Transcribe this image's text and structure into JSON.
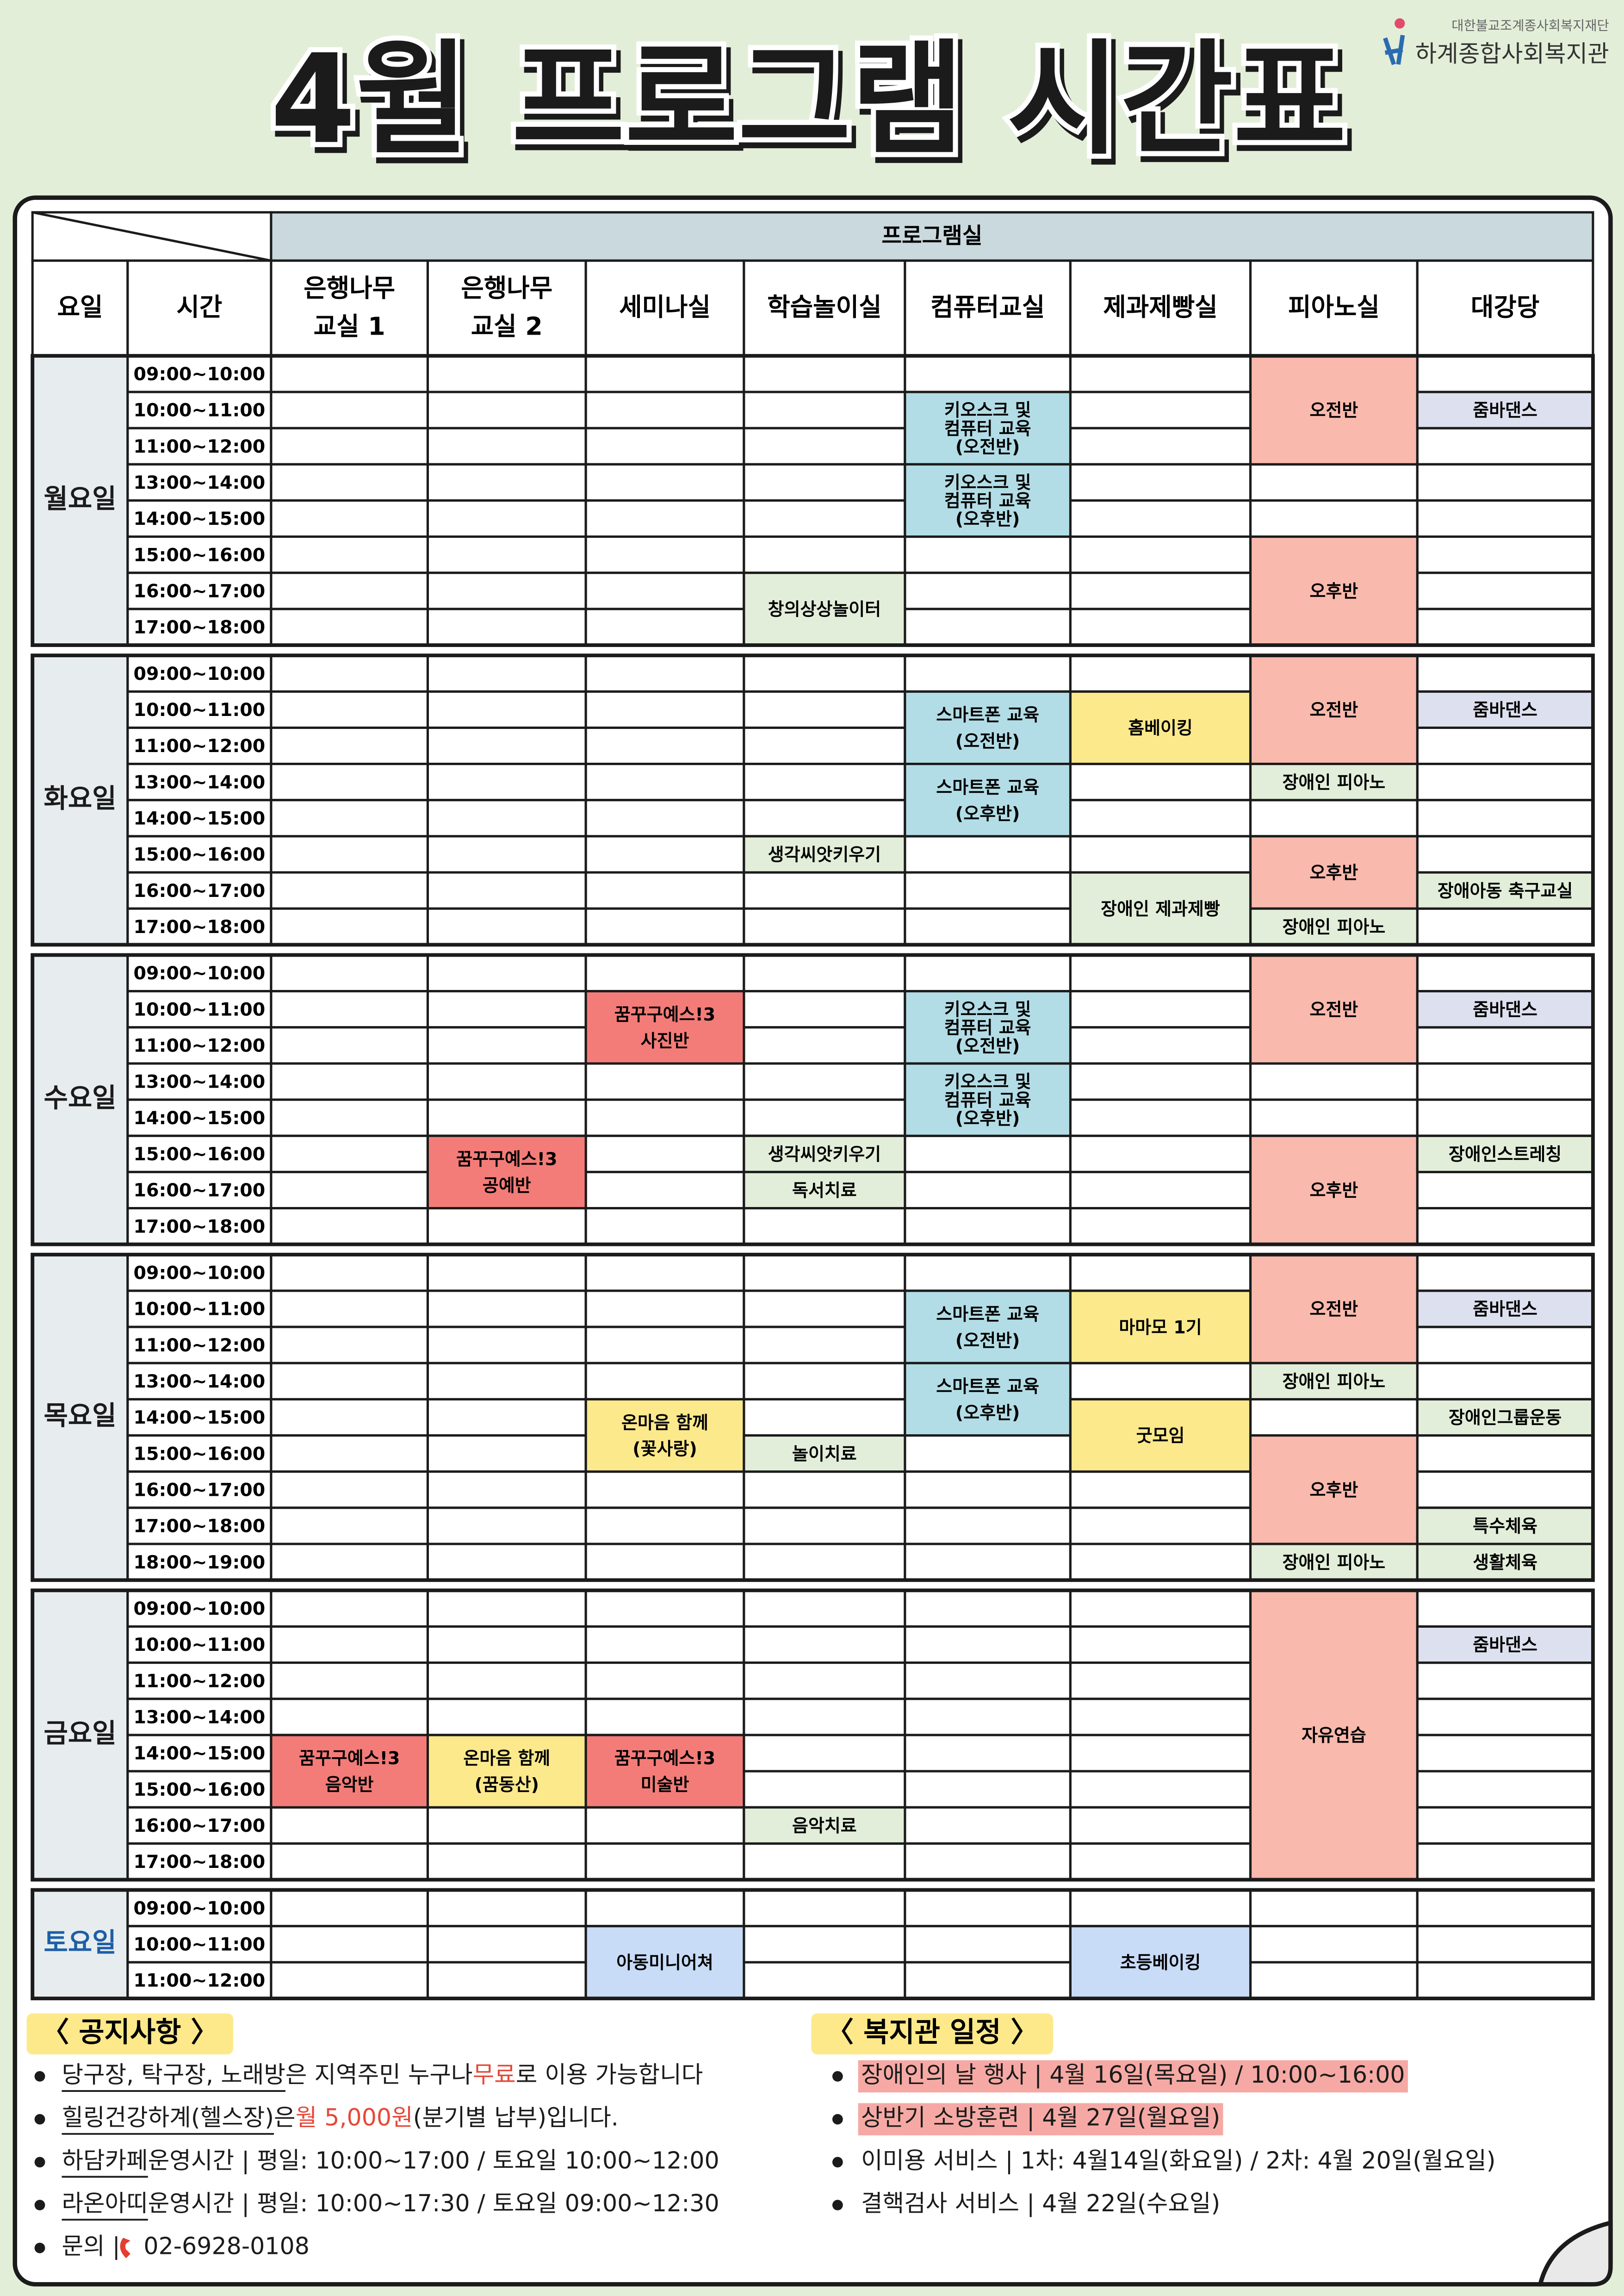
{
  "header": {
    "title": "4월 프로그램 시간표",
    "org_top": "대한불교조계종사회복지재단",
    "org": "하계종합사회복지관"
  },
  "table": {
    "group_header": "프로그램실",
    "day_header": "요일",
    "time_header": "시간",
    "rooms": [
      [
        "은행나무",
        "교실 1"
      ],
      [
        "은행나무",
        "교실 2"
      ],
      [
        "세미나실"
      ],
      [
        "학습놀이실"
      ],
      [
        "컴퓨터교실"
      ],
      [
        "제과제빵실"
      ],
      [
        "피아노실"
      ],
      [
        "대강당"
      ]
    ],
    "days": [
      {
        "name": "월요일",
        "times": [
          "09:00~10:00",
          "10:00~11:00",
          "11:00~12:00",
          "13:00~14:00",
          "14:00~15:00",
          "15:00~16:00",
          "16:00~17:00",
          "17:00~18:00"
        ],
        "events": [
          {
            "room": 4,
            "from": "10:00~11:00",
            "to": "11:00~12:00",
            "color": "#b3dde6",
            "label": [
              "키오스크 및",
              "컴퓨터 교육",
              "(오전반)"
            ]
          },
          {
            "room": 4,
            "from": "13:00~14:00",
            "to": "14:00~15:00",
            "color": "#b3dde6",
            "label": [
              "키오스크 및",
              "컴퓨터 교육",
              "(오후반)"
            ]
          },
          {
            "room": 3,
            "from": "16:00~17:00",
            "to": "17:00~18:00",
            "color": "#e2eed9",
            "label": [
              "창의상상놀이터"
            ]
          },
          {
            "room": 6,
            "from": "09:00~10:00",
            "to": "11:00~12:00",
            "color": "#f9b9ad",
            "label": [
              "오전반"
            ]
          },
          {
            "room": 6,
            "from": "15:00~16:00",
            "to": "17:00~18:00",
            "color": "#f9b9ad",
            "label": [
              "오후반"
            ]
          },
          {
            "room": 7,
            "from": "10:00~11:00",
            "to": "10:00~11:00",
            "color": "#dde0ee",
            "label": [
              "줌바댄스"
            ]
          }
        ]
      },
      {
        "name": "화요일",
        "times": [
          "09:00~10:00",
          "10:00~11:00",
          "11:00~12:00",
          "13:00~14:00",
          "14:00~15:00",
          "15:00~16:00",
          "16:00~17:00",
          "17:00~18:00"
        ],
        "events": [
          {
            "room": 4,
            "from": "10:00~11:00",
            "to": "11:00~12:00",
            "color": "#b3dde6",
            "label": [
              "스마트폰 교육",
              "(오전반)"
            ]
          },
          {
            "room": 4,
            "from": "13:00~14:00",
            "to": "14:00~15:00",
            "color": "#b3dde6",
            "label": [
              "스마트폰 교육",
              "(오후반)"
            ]
          },
          {
            "room": 5,
            "from": "10:00~11:00",
            "to": "11:00~12:00",
            "color": "#fbe98c",
            "label": [
              "홈베이킹"
            ]
          },
          {
            "room": 6,
            "from": "09:00~10:00",
            "to": "11:00~12:00",
            "color": "#f9b9ad",
            "label": [
              "오전반"
            ]
          },
          {
            "room": 6,
            "from": "13:00~14:00",
            "to": "13:00~14:00",
            "color": "#e2eed9",
            "label": [
              "장애인 피아노"
            ]
          },
          {
            "room": 6,
            "from": "15:00~16:00",
            "to": "16:00~17:00",
            "color": "#f9b9ad",
            "label": [
              "오후반"
            ]
          },
          {
            "room": 6,
            "from": "17:00~18:00",
            "to": "17:00~18:00",
            "color": "#e2eed9",
            "label": [
              "장애인 피아노"
            ]
          },
          {
            "room": 3,
            "from": "15:00~16:00",
            "to": "15:00~16:00",
            "color": "#e2eed9",
            "label": [
              "생각씨앗키우기"
            ]
          },
          {
            "room": 5,
            "from": "16:00~17:00",
            "to": "17:00~18:00",
            "color": "#e2eed9",
            "label": [
              "장애인 제과제빵"
            ]
          },
          {
            "room": 7,
            "from": "10:00~11:00",
            "to": "10:00~11:00",
            "color": "#dde0ee",
            "label": [
              "줌바댄스"
            ]
          },
          {
            "room": 7,
            "from": "16:00~17:00",
            "to": "16:00~17:00",
            "color": "#e2eed9",
            "label": [
              "장애아동 축구교실"
            ]
          }
        ]
      },
      {
        "name": "수요일",
        "times": [
          "09:00~10:00",
          "10:00~11:00",
          "11:00~12:00",
          "13:00~14:00",
          "14:00~15:00",
          "15:00~16:00",
          "16:00~17:00",
          "17:00~18:00"
        ],
        "events": [
          {
            "room": 2,
            "from": "10:00~11:00",
            "to": "11:00~12:00",
            "color": "#f47c78",
            "label": [
              "꿈꾸구예스!3",
              "사진반"
            ]
          },
          {
            "room": 4,
            "from": "10:00~11:00",
            "to": "11:00~12:00",
            "color": "#b3dde6",
            "label": [
              "키오스크 및",
              "컴퓨터 교육",
              "(오전반)"
            ]
          },
          {
            "room": 4,
            "from": "13:00~14:00",
            "to": "14:00~15:00",
            "color": "#b3dde6",
            "label": [
              "키오스크 및",
              "컴퓨터 교육",
              "(오후반)"
            ]
          },
          {
            "room": 1,
            "from": "15:00~16:00",
            "to": "16:00~17:00",
            "color": "#f47c78",
            "label": [
              "꿈꾸구예스!3",
              "공예반"
            ]
          },
          {
            "room": 3,
            "from": "15:00~16:00",
            "to": "15:00~16:00",
            "color": "#e2eed9",
            "label": [
              "생각씨앗키우기"
            ]
          },
          {
            "room": 3,
            "from": "16:00~17:00",
            "to": "16:00~17:00",
            "color": "#e2eed9",
            "label": [
              "독서치료"
            ]
          },
          {
            "room": 6,
            "from": "09:00~10:00",
            "to": "11:00~12:00",
            "color": "#f9b9ad",
            "label": [
              "오전반"
            ]
          },
          {
            "room": 6,
            "from": "15:00~16:00",
            "to": "17:00~18:00",
            "color": "#f9b9ad",
            "label": [
              "오후반"
            ]
          },
          {
            "room": 7,
            "from": "10:00~11:00",
            "to": "10:00~11:00",
            "color": "#dde0ee",
            "label": [
              "줌바댄스"
            ]
          },
          {
            "room": 7,
            "from": "15:00~16:00",
            "to": "15:00~16:00",
            "color": "#e2eed9",
            "label": [
              "장애인스트레칭"
            ]
          }
        ]
      },
      {
        "name": "목요일",
        "times": [
          "09:00~10:00",
          "10:00~11:00",
          "11:00~12:00",
          "13:00~14:00",
          "14:00~15:00",
          "15:00~16:00",
          "16:00~17:00",
          "17:00~18:00",
          "18:00~19:00"
        ],
        "events": [
          {
            "room": 4,
            "from": "10:00~11:00",
            "to": "11:00~12:00",
            "color": "#b3dde6",
            "label": [
              "스마트폰 교육",
              "(오전반)"
            ]
          },
          {
            "room": 4,
            "from": "13:00~14:00",
            "to": "14:00~15:00",
            "color": "#b3dde6",
            "label": [
              "스마트폰 교육",
              "(오후반)"
            ]
          },
          {
            "room": 5,
            "from": "10:00~11:00",
            "to": "11:00~12:00",
            "color": "#fbe98c",
            "label": [
              "마마모 1기"
            ]
          },
          {
            "room": 5,
            "from": "14:00~15:00",
            "to": "15:00~16:00",
            "color": "#fbe98c",
            "label": [
              "굿모임"
            ]
          },
          {
            "room": 6,
            "from": "09:00~10:00",
            "to": "11:00~12:00",
            "color": "#f9b9ad",
            "label": [
              "오전반"
            ]
          },
          {
            "room": 6,
            "from": "13:00~14:00",
            "to": "13:00~14:00",
            "color": "#e2eed9",
            "label": [
              "장애인 피아노"
            ]
          },
          {
            "room": 6,
            "from": "15:00~16:00",
            "to": "17:00~18:00",
            "color": "#f9b9ad",
            "label": [
              "오후반"
            ]
          },
          {
            "room": 6,
            "from": "18:00~19:00",
            "to": "18:00~19:00",
            "color": "#e2eed9",
            "label": [
              "장애인 피아노"
            ]
          },
          {
            "room": 2,
            "from": "14:00~15:00",
            "to": "15:00~16:00",
            "color": "#fbe98c",
            "label": [
              "온마음 함께",
              "(꽃사랑)"
            ]
          },
          {
            "room": 3,
            "from": "15:00~16:00",
            "to": "15:00~16:00",
            "color": "#e2eed9",
            "label": [
              "놀이치료"
            ]
          },
          {
            "room": 7,
            "from": "10:00~11:00",
            "to": "10:00~11:00",
            "color": "#dde0ee",
            "label": [
              "줌바댄스"
            ]
          },
          {
            "room": 7,
            "from": "14:00~15:00",
            "to": "14:00~15:00",
            "color": "#e2eed9",
            "label": [
              "장애인그룹운동"
            ]
          },
          {
            "room": 7,
            "from": "17:00~18:00",
            "to": "17:00~18:00",
            "color": "#e2eed9",
            "label": [
              "특수체육"
            ]
          },
          {
            "room": 7,
            "from": "18:00~19:00",
            "to": "18:00~19:00",
            "color": "#e2eed9",
            "label": [
              "생활체육"
            ]
          }
        ]
      },
      {
        "name": "금요일",
        "times": [
          "09:00~10:00",
          "10:00~11:00",
          "11:00~12:00",
          "13:00~14:00",
          "14:00~15:00",
          "15:00~16:00",
          "16:00~17:00",
          "17:00~18:00"
        ],
        "events": [
          {
            "room": 0,
            "from": "14:00~15:00",
            "to": "15:00~16:00",
            "color": "#f47c78",
            "label": [
              "꿈꾸구예스!3",
              "음악반"
            ]
          },
          {
            "room": 1,
            "from": "14:00~15:00",
            "to": "15:00~16:00",
            "color": "#fbe98c",
            "label": [
              "온마음 함께",
              "(꿈동산)"
            ]
          },
          {
            "room": 2,
            "from": "14:00~15:00",
            "to": "15:00~16:00",
            "color": "#f47c78",
            "label": [
              "꿈꾸구예스!3",
              "미술반"
            ]
          },
          {
            "room": 3,
            "from": "16:00~17:00",
            "to": "16:00~17:00",
            "color": "#e2eed9",
            "label": [
              "음악치료"
            ]
          },
          {
            "room": 6,
            "from": "09:00~10:00",
            "to": "17:00~18:00",
            "color": "#f9b9ad",
            "label": [
              "자유연습"
            ]
          },
          {
            "room": 7,
            "from": "10:00~11:00",
            "to": "10:00~11:00",
            "color": "#dde0ee",
            "label": [
              "줌바댄스"
            ]
          }
        ]
      },
      {
        "name": "토요일",
        "color": "#1d5fa6",
        "times": [
          "09:00~10:00",
          "10:00~11:00",
          "11:00~12:00"
        ],
        "events": [
          {
            "room": 2,
            "from": "10:00~11:00",
            "to": "11:00~12:00",
            "color": "#c8dbf7",
            "label": [
              "아동미니어쳐"
            ]
          },
          {
            "room": 5,
            "from": "10:00~11:00",
            "to": "11:00~12:00",
            "color": "#c8dbf7",
            "label": [
              "초등베이킹"
            ]
          }
        ]
      }
    ]
  },
  "notices": {
    "title": "〈 공지사항 〉",
    "items": [
      [
        {
          "text": "당구장, 탁구장, 노래방",
          "style": "underline"
        },
        {
          "text": "은 지역주민 누구나 "
        },
        {
          "text": "무료",
          "style": "red"
        },
        {
          "text": "로 이용 가능합니다"
        }
      ],
      [
        {
          "text": "힐링건강하계(헬스장)",
          "style": "underline"
        },
        {
          "text": "은 "
        },
        {
          "text": "월 5,000원",
          "style": "red"
        },
        {
          "text": "(분기별 납부)입니다."
        }
      ],
      [
        {
          "text": "하담카페",
          "style": "underline"
        },
        {
          "text": " 운영시간 | 평일: 10:00~17:00 / 토요일 10:00~12:00"
        }
      ],
      [
        {
          "text": "라온아띠",
          "style": "underline"
        },
        {
          "text": " 운영시간 | 평일: 10:00~17:30 / 토요일 09:00~12:30"
        }
      ],
      [
        {
          "text": "문의 | "
        },
        {
          "text": "02-6928-0108",
          "style": "phone"
        }
      ]
    ]
  },
  "schedule": {
    "title": "〈 복지관 일정 〉",
    "items": [
      [
        {
          "text": "장애인의 날 행사 | 4월 16일(목요일) / 10:00~16:00",
          "style": "highlight"
        }
      ],
      [
        {
          "text": "상반기 소방훈련 | 4월 27일(월요일)",
          "style": "highlight"
        }
      ],
      [
        {
          "text": "이미용 서비스 | 1차: 4월14일(화요일) / 2차: 4월 20일(월요일)"
        }
      ],
      [
        {
          "text": "결핵검사 서비스 | 4월 22일(수요일)"
        }
      ]
    ]
  }
}
